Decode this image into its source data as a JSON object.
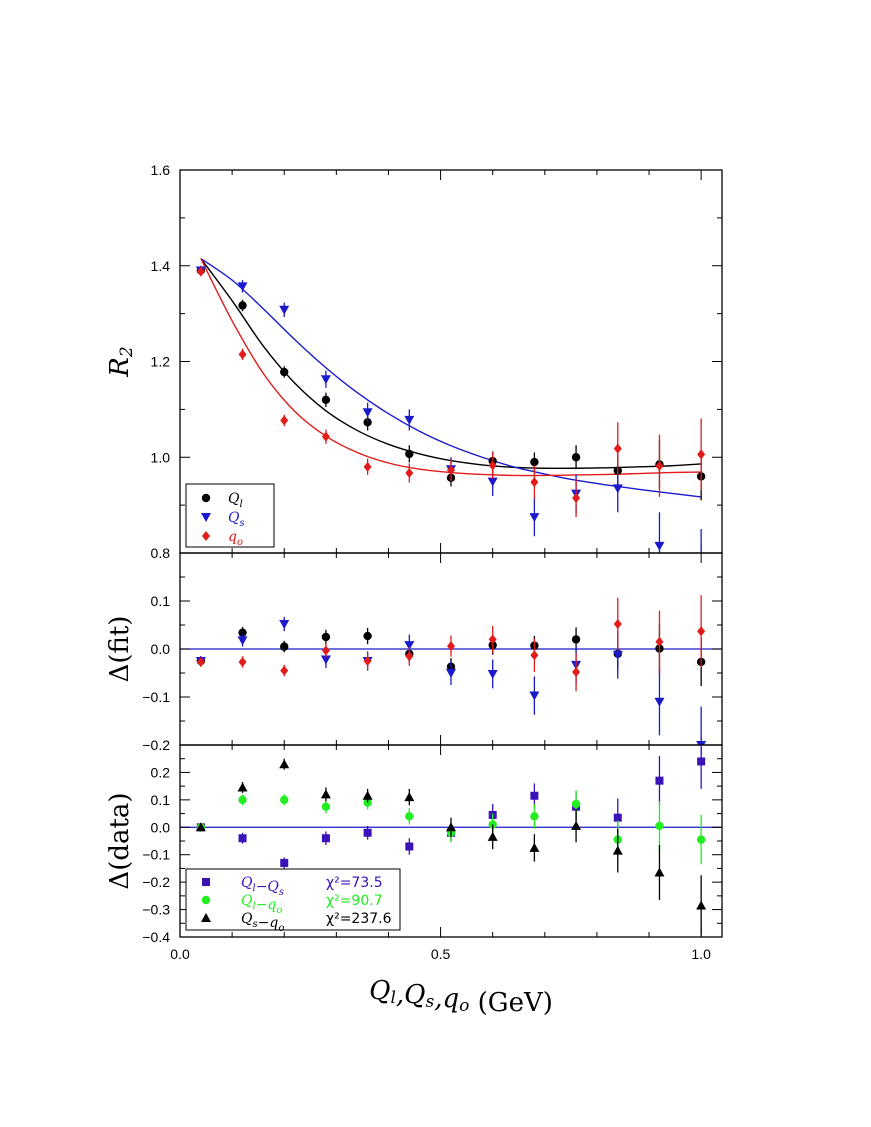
{
  "chart_data": [
    {
      "type": "scatter",
      "panel": "top",
      "ylabel": "R",
      "ylabel_sub": "2",
      "xlim": [
        0.0,
        1.04
      ],
      "ylim": [
        0.8,
        1.6
      ],
      "y_ticks": [
        "0.8",
        "1.0",
        "1.2",
        "1.4",
        "1.6"
      ],
      "y_tick_values": [
        0.8,
        1.0,
        1.2,
        1.4,
        1.6
      ],
      "legend_position": "bottom-left",
      "x": [
        0.04,
        0.12,
        0.2,
        0.28,
        0.36,
        0.44,
        0.52,
        0.6,
        0.68,
        0.76,
        0.84,
        0.92,
        1.0
      ],
      "series": [
        {
          "name": "Q",
          "name_sub": "l",
          "color": "#000000",
          "marker": "circle",
          "y": [
            1.39,
            1.317,
            1.178,
            1.12,
            1.073,
            1.007,
            0.957,
            0.992,
            0.99,
            1.0,
            0.972,
            0.985,
            0.96
          ],
          "err": [
            0.01,
            0.012,
            0.012,
            0.015,
            0.017,
            0.018,
            0.018,
            0.02,
            0.02,
            0.025,
            0.035,
            0.05,
            0.05
          ]
        },
        {
          "name": "Q",
          "name_sub": "s",
          "color": "#1a1acc",
          "marker": "triangle-down",
          "y": [
            1.39,
            1.357,
            1.308,
            1.163,
            1.094,
            1.078,
            0.975,
            0.949,
            0.875,
            0.924,
            0.935,
            0.815,
            0.76
          ],
          "err": [
            0.01,
            0.013,
            0.015,
            0.018,
            0.02,
            0.022,
            0.025,
            0.03,
            0.04,
            0.04,
            0.05,
            0.07,
            0.09
          ]
        },
        {
          "name": "q",
          "name_sub": "o",
          "color": "#e21b1b",
          "marker": "diamond",
          "y": [
            1.388,
            1.215,
            1.077,
            1.043,
            0.98,
            0.967,
            0.973,
            0.983,
            0.948,
            0.915,
            1.018,
            0.982,
            1.006
          ],
          "err": [
            0.01,
            0.012,
            0.012,
            0.015,
            0.017,
            0.02,
            0.022,
            0.028,
            0.035,
            0.04,
            0.055,
            0.065,
            0.075
          ]
        }
      ],
      "fit_curves": [
        {
          "color": "#000000",
          "x": [
            0.04,
            0.1,
            0.16,
            0.22,
            0.28,
            0.34,
            0.4,
            0.46,
            0.52,
            0.58,
            0.64,
            0.7,
            0.76,
            0.82,
            0.88,
            0.94,
            1.0
          ],
          "y": [
            1.415,
            1.327,
            1.232,
            1.155,
            1.097,
            1.056,
            1.027,
            1.007,
            0.993,
            0.984,
            0.979,
            0.977,
            0.977,
            0.978,
            0.98,
            0.982,
            0.986
          ]
        },
        {
          "color": "#1a1acc",
          "x": [
            0.04,
            0.1,
            0.16,
            0.22,
            0.28,
            0.34,
            0.4,
            0.46,
            0.52,
            0.58,
            0.64,
            0.7,
            0.76,
            0.82,
            0.88,
            0.94,
            1.0
          ],
          "y": [
            1.415,
            1.37,
            1.31,
            1.246,
            1.187,
            1.135,
            1.091,
            1.054,
            1.024,
            1.0,
            0.98,
            0.965,
            0.952,
            0.942,
            0.933,
            0.925,
            0.917
          ]
        },
        {
          "color": "#e21b1b",
          "x": [
            0.04,
            0.1,
            0.16,
            0.22,
            0.28,
            0.34,
            0.4,
            0.46,
            0.52,
            0.58,
            0.64,
            0.7,
            0.76,
            0.82,
            0.88,
            0.94,
            1.0
          ],
          "y": [
            1.415,
            1.285,
            1.175,
            1.096,
            1.044,
            1.01,
            0.988,
            0.975,
            0.968,
            0.964,
            0.962,
            0.962,
            0.963,
            0.964,
            0.966,
            0.968,
            0.969
          ]
        }
      ]
    },
    {
      "type": "scatter",
      "panel": "middle",
      "ylabel": "Δ(fit)",
      "xlim": [
        0.0,
        1.04
      ],
      "ylim": [
        -0.2,
        0.2
      ],
      "y_ticks": [
        "−0.2",
        "−0.1",
        "0.0",
        "0.1"
      ],
      "y_tick_values": [
        -0.2,
        -0.1,
        0.0,
        0.1
      ],
      "zero_line_color": "#1a1acc",
      "x": [
        0.04,
        0.12,
        0.2,
        0.28,
        0.36,
        0.44,
        0.52,
        0.6,
        0.68,
        0.76,
        0.84,
        0.92,
        1.0
      ],
      "series": [
        {
          "color": "#000000",
          "marker": "circle",
          "y": [
            -0.025,
            0.034,
            0.005,
            0.025,
            0.027,
            -0.01,
            -0.037,
            0.008,
            0.007,
            0.02,
            -0.01,
            0.001,
            -0.027
          ],
          "err": [
            0.01,
            0.012,
            0.012,
            0.015,
            0.017,
            0.018,
            0.018,
            0.02,
            0.02,
            0.025,
            0.035,
            0.05,
            0.05
          ]
        },
        {
          "color": "#1a1acc",
          "marker": "triangle-down",
          "y": [
            -0.025,
            0.018,
            0.052,
            -0.022,
            -0.025,
            0.008,
            -0.05,
            -0.052,
            -0.097,
            -0.033,
            -0.012,
            -0.11,
            -0.2
          ],
          "err": [
            0.01,
            0.013,
            0.015,
            0.018,
            0.02,
            0.022,
            0.025,
            0.03,
            0.04,
            0.04,
            0.05,
            0.07,
            0.08
          ]
        },
        {
          "color": "#e21b1b",
          "marker": "diamond",
          "y": [
            -0.027,
            -0.027,
            -0.045,
            -0.003,
            -0.025,
            -0.015,
            0.006,
            0.02,
            -0.013,
            -0.048,
            0.052,
            0.015,
            0.037
          ],
          "err": [
            0.01,
            0.012,
            0.012,
            0.015,
            0.017,
            0.02,
            0.022,
            0.028,
            0.035,
            0.04,
            0.055,
            0.065,
            0.075
          ]
        }
      ]
    },
    {
      "type": "scatter",
      "panel": "bottom",
      "ylabel": "Δ(data)",
      "xlabel": "Q",
      "xlabel_parts": [
        {
          "text": "Q",
          "sub": "l"
        },
        {
          "text": ",Q",
          "sub": "s"
        },
        {
          "text": ",q",
          "sub": "o"
        }
      ],
      "xlabel_unit": " (GeV)",
      "xlim": [
        0.0,
        1.04
      ],
      "ylim": [
        -0.4,
        0.3
      ],
      "x_ticks": [
        "0.0",
        "0.5",
        "1.0"
      ],
      "x_tick_values": [
        0.0,
        0.5,
        1.0
      ],
      "y_ticks": [
        "−0.4",
        "−0.3",
        "−0.2",
        "−0.1",
        "0.0",
        "0.1",
        "0.2"
      ],
      "y_tick_values": [
        -0.4,
        -0.3,
        -0.2,
        -0.1,
        0.0,
        0.1,
        0.2
      ],
      "zero_line_color": "#1a1acc",
      "legend_position": "bottom-left",
      "x": [
        0.04,
        0.12,
        0.2,
        0.28,
        0.36,
        0.44,
        0.52,
        0.6,
        0.68,
        0.76,
        0.84,
        0.92,
        1.0
      ],
      "series": [
        {
          "name": "Q",
          "name_sub": "l",
          "name_rest": "−Q",
          "name_rest_sub": "s",
          "chi2": "χ²=73.5",
          "color": "#3b11b8",
          "marker": "square",
          "y": [
            0.0,
            -0.04,
            -0.13,
            -0.04,
            -0.02,
            -0.07,
            -0.02,
            0.045,
            0.115,
            0.075,
            0.035,
            0.17,
            0.24
          ],
          "err": [
            0.015,
            0.02,
            0.02,
            0.025,
            0.025,
            0.03,
            0.03,
            0.04,
            0.045,
            0.05,
            0.07,
            0.09,
            0.1
          ]
        },
        {
          "name": "Q",
          "name_sub": "l",
          "name_rest": "−q",
          "name_rest_sub": "o",
          "chi2": "χ²=90.7",
          "color": "#22ee22",
          "marker": "circle",
          "y": [
            0.0,
            0.1,
            0.1,
            0.075,
            0.09,
            0.04,
            -0.02,
            0.01,
            0.04,
            0.085,
            -0.045,
            0.005,
            -0.045
          ],
          "err": [
            0.015,
            0.02,
            0.02,
            0.025,
            0.025,
            0.03,
            0.035,
            0.04,
            0.045,
            0.05,
            0.07,
            0.09,
            0.09
          ]
        },
        {
          "name": "Q",
          "name_sub": "s",
          "name_rest": "−q",
          "name_rest_sub": "o",
          "chi2": "χ²=237.6",
          "color": "#000000",
          "marker": "triangle-up",
          "y": [
            0.0,
            0.145,
            0.23,
            0.12,
            0.115,
            0.11,
            0.0,
            -0.035,
            -0.075,
            0.005,
            -0.085,
            -0.165,
            -0.285
          ],
          "err": [
            0.015,
            0.02,
            0.02,
            0.025,
            0.025,
            0.03,
            0.035,
            0.045,
            0.05,
            0.06,
            0.08,
            0.1,
            0.11
          ]
        }
      ]
    }
  ]
}
